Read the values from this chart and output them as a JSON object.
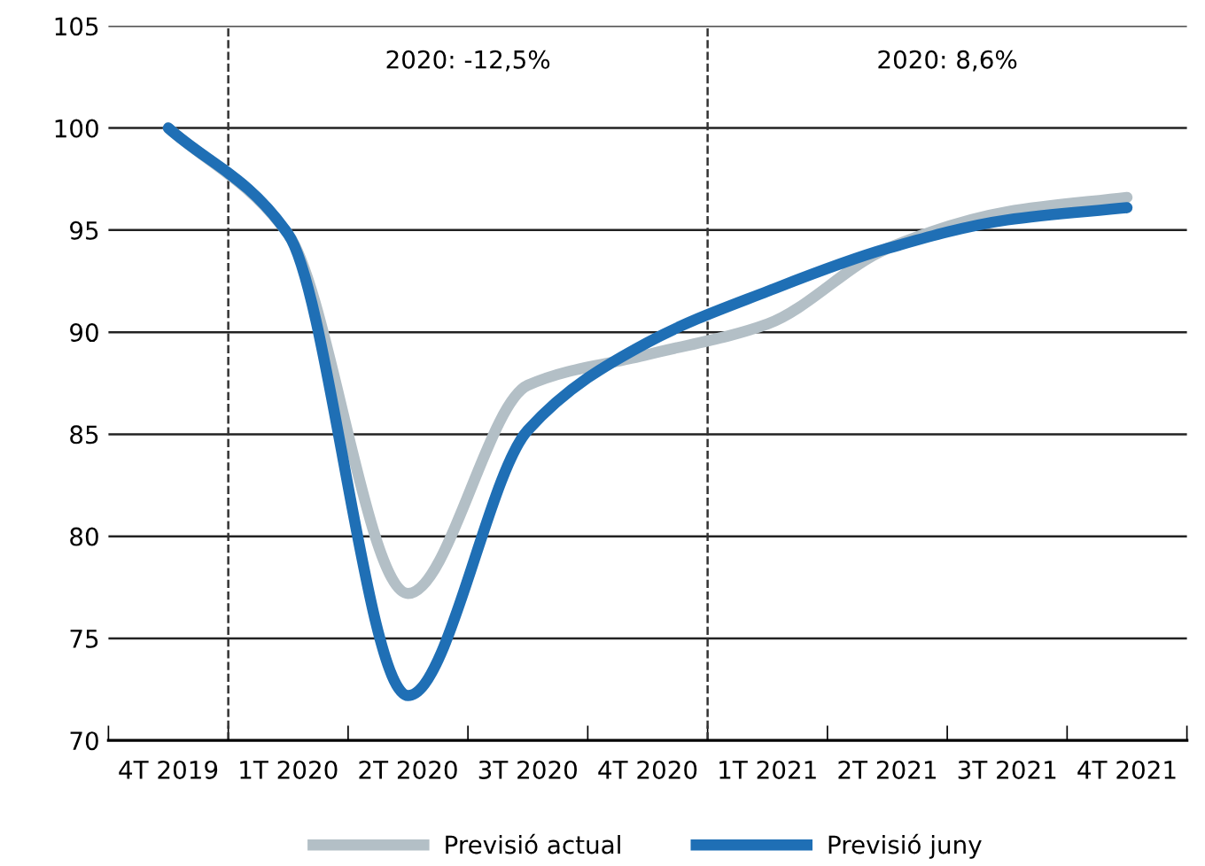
{
  "chart_data": {
    "type": "line",
    "categories": [
      "4T 2019",
      "1T 2020",
      "2T 2020",
      "3T 2020",
      "4T 2020",
      "1T 2021",
      "2T 2021",
      "3T 2021",
      "4T 2021"
    ],
    "series": [
      {
        "name": "Previsió actual",
        "color": "#b3bfc6",
        "values": [
          100,
          94.8,
          77.2,
          87.4,
          88.9,
          90.4,
          94.1,
          95.9,
          96.6
        ]
      },
      {
        "name": "Previsió juny",
        "color": "#1f6fb5",
        "values": [
          100,
          94.8,
          72.2,
          85.2,
          89.5,
          92.0,
          94.1,
          95.5,
          96.1
        ]
      }
    ],
    "ylim": [
      70,
      105
    ],
    "yticks": [
      70,
      75,
      80,
      85,
      90,
      95,
      100,
      105
    ],
    "grid": "y",
    "legend": "bottom",
    "marker": "none",
    "line_style": "solid",
    "annotations": [
      "2020: -12,5%",
      "2020: 8,6%"
    ]
  }
}
